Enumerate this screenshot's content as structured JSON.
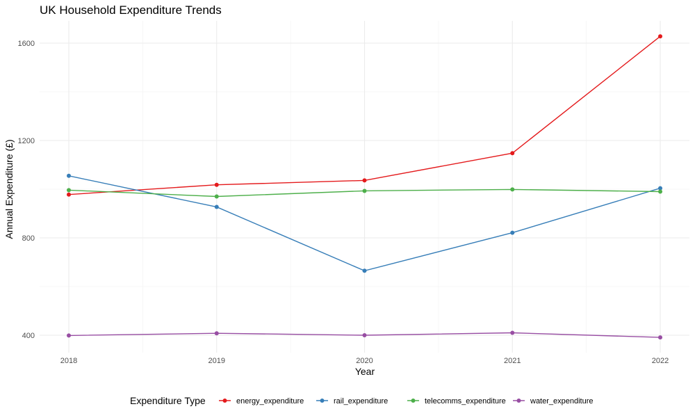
{
  "chart_data": {
    "type": "line",
    "title": "UK Household Expenditure Trends",
    "xlabel": "Year",
    "ylabel": "Annual Expenditure (£)",
    "x": [
      2018,
      2019,
      2020,
      2021,
      2022
    ],
    "x_tick_labels": [
      "2018",
      "2019",
      "2020",
      "2021",
      "2022"
    ],
    "y_ticks": [
      400,
      800,
      1200,
      1600
    ],
    "y_tick_labels": [
      "400",
      "800",
      "1200",
      "1600"
    ],
    "ylim": [
      330,
      1700
    ],
    "grid": true,
    "legend": {
      "title": "Expenditure Type",
      "position": "bottom"
    },
    "series": [
      {
        "name": "energy_expenditure",
        "color": "#E41A1C",
        "values": [
          978,
          1018,
          1036,
          1148,
          1628
        ]
      },
      {
        "name": "rail_expenditure",
        "color": "#377EB8",
        "values": [
          1055,
          927,
          665,
          821,
          1004
        ]
      },
      {
        "name": "telecomms_expenditure",
        "color": "#4DAF4A",
        "values": [
          996,
          970,
          993,
          999,
          990
        ]
      },
      {
        "name": "water_expenditure",
        "color": "#984EA3",
        "values": [
          399,
          408,
          400,
          410,
          391
        ]
      }
    ]
  }
}
